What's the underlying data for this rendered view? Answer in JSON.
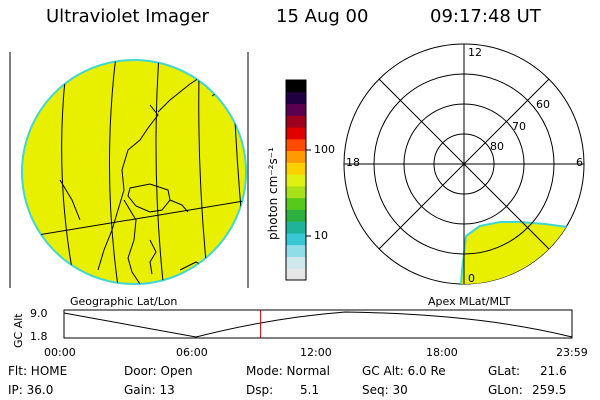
{
  "header": {
    "instrument": "Ultraviolet Imager",
    "date": "15 Aug 00",
    "time": "09:17:48 UT"
  },
  "colorbar": {
    "label": "photon cm⁻²s⁻¹",
    "tick_100": "100",
    "tick_10": "10",
    "colors": [
      "#e6e6e6",
      "#cfe8ee",
      "#8fdde6",
      "#39c7d6",
      "#1fb39a",
      "#2cb040",
      "#58c81a",
      "#a8e01a",
      "#e0f010",
      "#ffd000",
      "#ff9a00",
      "#ff4a00",
      "#e00000",
      "#a00020",
      "#5a0050",
      "#200040",
      "#000000"
    ]
  },
  "geo_panel": {
    "caption": "Geographic Lat/Lon",
    "disk_color": "#e8f000",
    "edge_color": "#41d7d0"
  },
  "polar_panel": {
    "caption": "Apex MLat/MLT",
    "mlt_12": "12",
    "mlt_18": "18",
    "mlt_6": "6",
    "mlt_0": "0",
    "lat_60": "60",
    "lat_70": "70",
    "lat_80": "80"
  },
  "timeline": {
    "ylabel": "GC Alt",
    "y_top": "9.0",
    "y_bottom": "1.8",
    "ticks": [
      "00:00",
      "06:00",
      "12:00",
      "18:00",
      "23:59"
    ],
    "marker_fraction": 0.387,
    "marker_color": "#d00000"
  },
  "info": {
    "flt": "Flt: HOME",
    "ip": "IP: 36.0",
    "door": "Door: Open",
    "gain": "Gain: 13",
    "mode": "Mode: Normal",
    "dsp_label": "Dsp:",
    "dsp_value": "5.1",
    "gc_alt": "GC Alt: 6.0 Re",
    "seq": "Seq: 30",
    "glat_label": "GLat:",
    "glat_value": "21.6",
    "glon_label": "GLon:",
    "glon_value": "259.5"
  }
}
